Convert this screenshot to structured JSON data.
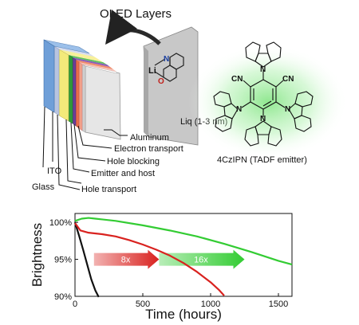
{
  "diagram": {
    "title": "OLED Layers",
    "liq_molecule_label": "Liq (1-3 nm)",
    "liq_atoms": {
      "li": "Li",
      "n": "N",
      "o": "O"
    },
    "emitter_label": "4CzIPN (TADF emitter)",
    "emitter_atoms": {
      "cn": "CN",
      "n": "N"
    },
    "layer_labels": {
      "aluminum": "Aluminum",
      "electron_transport": "Electron transport",
      "hole_blocking": "Hole blocking",
      "emitter_host": "Emitter and host",
      "hole_transport": "Hole transport",
      "ito": "ITO",
      "glass": "Glass"
    },
    "layer_colors": {
      "glass": "#6f9fd8",
      "ito": "#b8c4e0",
      "hole_transport": "#f3ea7a",
      "emitter_host": "#2f9a3a",
      "hole_blocking": "#6a3d98",
      "electron_transport": "#e86b4a",
      "electron_transport_2": "#f2a08a",
      "aluminum": "#f0f0f0",
      "liq_plate": "#c8c8c8"
    },
    "emitter_glow_color": "#7ce37c"
  },
  "chart_data": {
    "type": "line",
    "xlabel": "Time (hours)",
    "ylabel": "Brightness",
    "xlim": [
      0,
      1600
    ],
    "ylim": [
      90,
      101.2
    ],
    "xticks": [
      "0",
      "500",
      "1000",
      "1500"
    ],
    "yticks": [
      "90%",
      "95%",
      "100%"
    ],
    "series": [
      {
        "color": "#111111",
        "x": [
          0,
          30,
          60,
          90,
          120,
          150,
          175
        ],
        "y": [
          100,
          98.2,
          96.3,
          94.3,
          92.3,
          90.8,
          89.9
        ]
      },
      {
        "color": "#d9221f",
        "x": [
          0,
          40,
          100,
          200,
          300,
          400,
          500,
          600,
          700,
          800,
          900,
          1000,
          1060,
          1100
        ],
        "y": [
          99.9,
          98.9,
          98.6,
          98.4,
          98.1,
          97.6,
          97.0,
          96.3,
          95.5,
          94.5,
          93.3,
          91.9,
          90.9,
          90.1
        ]
      },
      {
        "color": "#33cc33",
        "x": [
          0,
          50,
          100,
          150,
          300,
          500,
          700,
          900,
          1100,
          1300,
          1500,
          1600
        ],
        "y": [
          100.2,
          100.5,
          100.6,
          100.5,
          100.2,
          99.6,
          98.9,
          98.1,
          97.1,
          96.0,
          94.8,
          94.3
        ]
      }
    ],
    "annotations": [
      {
        "text": "8x",
        "color": "#d9221f",
        "x_from": 140,
        "x_to": 620,
        "y": 95
      },
      {
        "text": "16x",
        "color": "#33cc33",
        "x_from": 620,
        "x_to": 1250,
        "y": 95
      }
    ]
  }
}
